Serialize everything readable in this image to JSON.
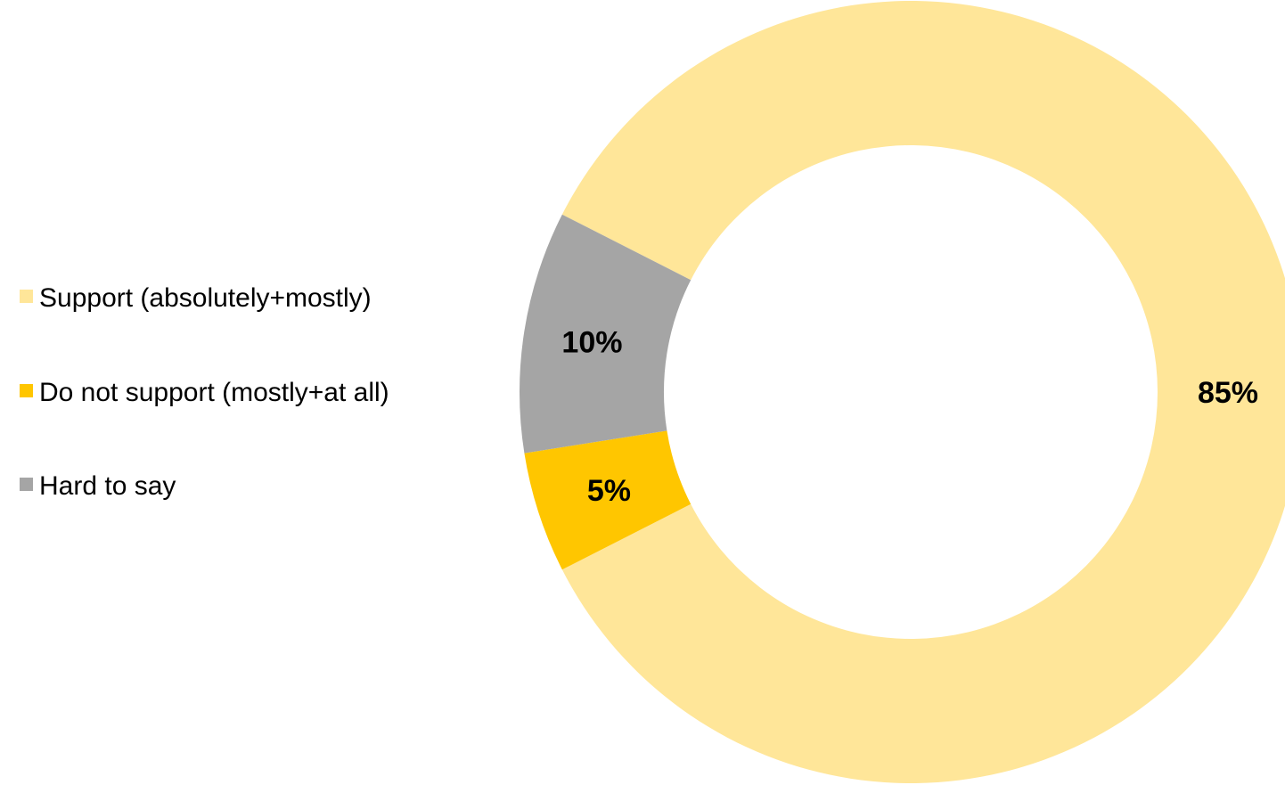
{
  "chart_data": {
    "type": "pie",
    "donut": true,
    "categories": [
      "Support (absolutely+mostly)",
      "Do not support (mostly+at all)",
      "Hard to say"
    ],
    "values": [
      85,
      5,
      10
    ],
    "data_labels": [
      "85%",
      "5%",
      "10%"
    ],
    "colors": [
      "#FFE699",
      "#FFC600",
      "#A5A5A5"
    ],
    "legend_position": "left"
  }
}
